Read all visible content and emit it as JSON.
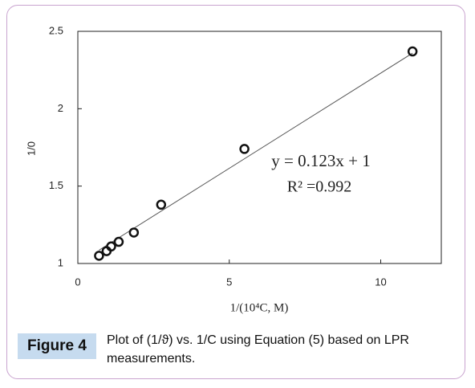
{
  "chart_data": {
    "type": "scatter",
    "x": [
      0.7,
      0.95,
      1.1,
      1.35,
      1.85,
      2.75,
      5.5,
      11.05
    ],
    "values": [
      1.05,
      1.08,
      1.11,
      1.14,
      1.2,
      1.38,
      1.74,
      2.37
    ],
    "color": "#111111",
    "xlim": [
      0,
      12
    ],
    "xticks": [
      0,
      5,
      10
    ],
    "ylim": [
      1,
      2.5
    ],
    "yticks": [
      1,
      1.5,
      2,
      2.5
    ],
    "xlabel": "1/(10⁴C, M)",
    "ylabel": "1/0",
    "annotations": [
      "y = 0.123x + 1",
      "R² =0.992"
    ],
    "trendline": {
      "slope": 0.123,
      "intercept": 1,
      "color": "#555555"
    }
  },
  "caption": {
    "label": "Figure 4",
    "text": "Plot of (1/ϑ) vs. 1/C using Equation (5) based on LPR measurements."
  }
}
